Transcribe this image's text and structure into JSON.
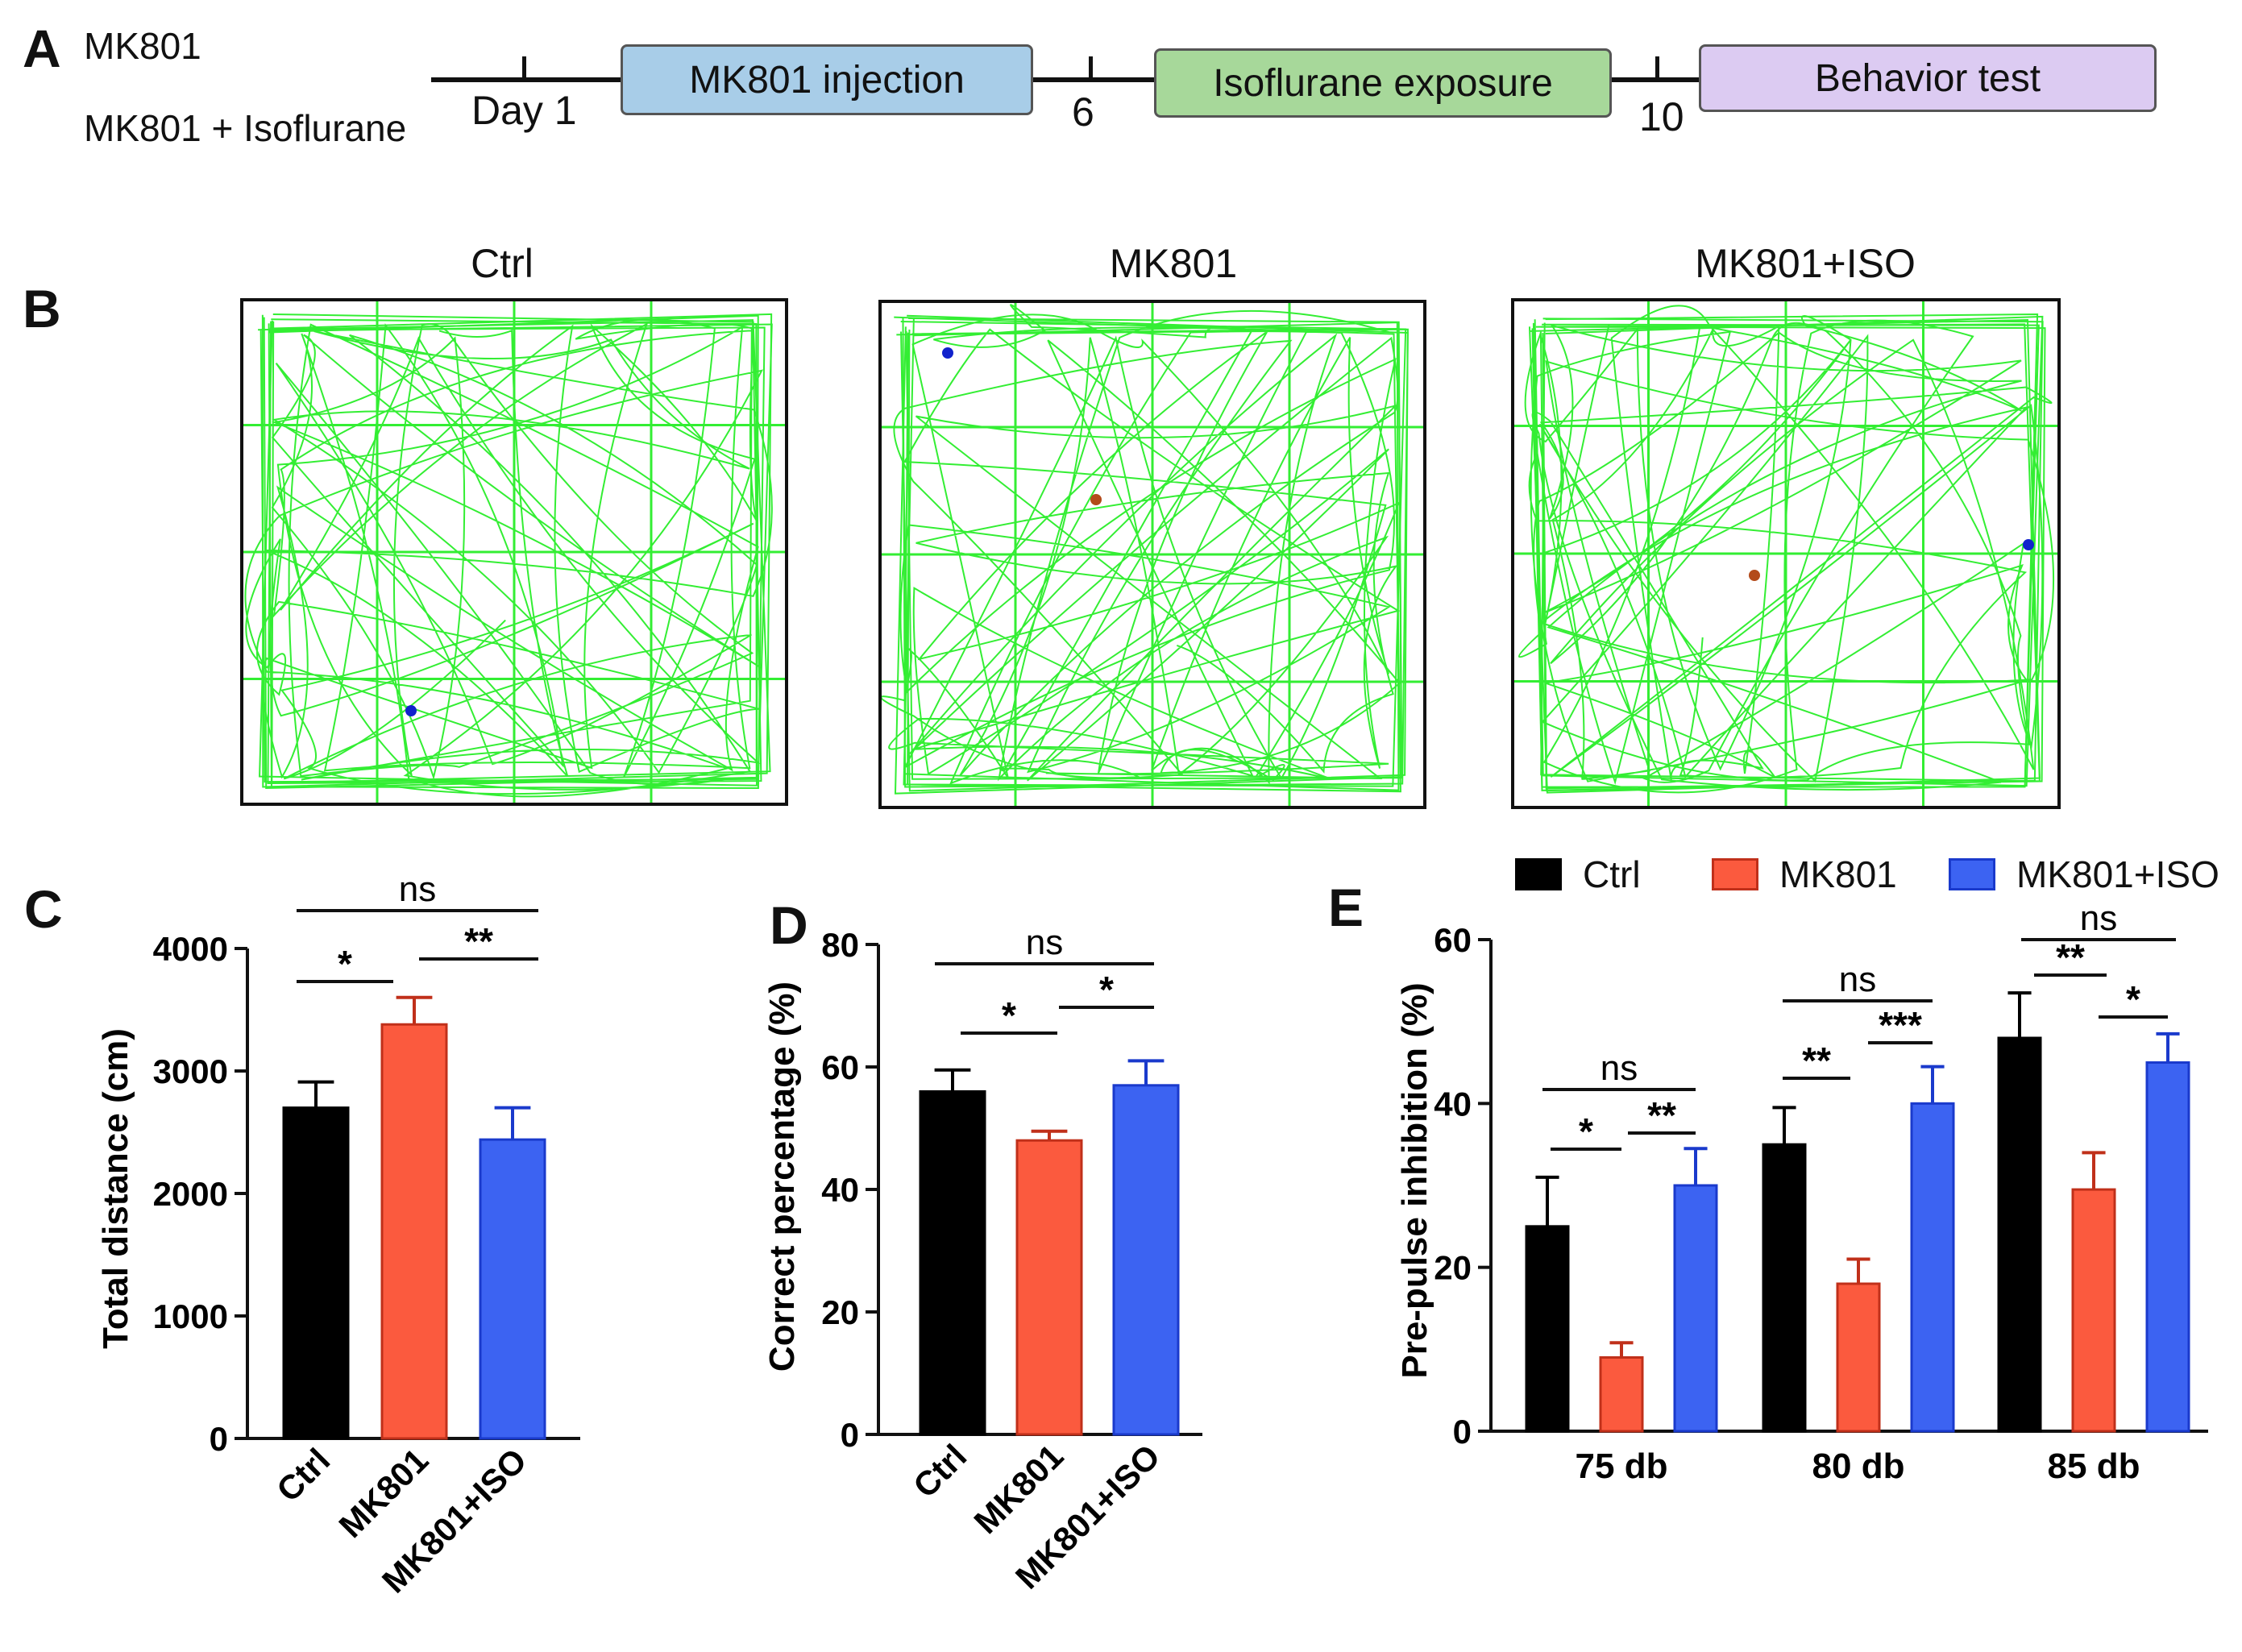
{
  "panelA": {
    "letter": "A",
    "group1": "MK801",
    "group2": "MK801 + Isoflurane",
    "day1": "Day 1",
    "day6": "6",
    "day10": "10",
    "box1": "MK801 injection",
    "box2": "Isoflurane exposure",
    "box3": "Behavior test",
    "colors": {
      "box1": "#a8cde8",
      "box2": "#a7d89a",
      "box3": "#dccbf2"
    }
  },
  "panelB": {
    "letter": "B",
    "arenas": [
      "Ctrl",
      "MK801",
      "MK801+ISO"
    ],
    "trackColor": "#33ee33"
  },
  "panelC": {
    "letter": "C"
  },
  "panelD": {
    "letter": "D"
  },
  "panelE": {
    "letter": "E"
  },
  "colors": {
    "ctrl": "#000000",
    "mk801": "#fb5a3e",
    "iso": "#3c63f2"
  },
  "chart_data": [
    {
      "type": "bar",
      "panel": "C",
      "categories": [
        "Ctrl",
        "MK801",
        "MK801+ISO"
      ],
      "values": [
        2700,
        3380,
        2440
      ],
      "errors": [
        210,
        220,
        260
      ],
      "ylabel": "Total distance (cm)",
      "ylim": [
        0,
        4000
      ],
      "yticks": [
        "0",
        "1000",
        "2000",
        "3000",
        "4000"
      ],
      "significance": [
        "*",
        "**",
        "ns"
      ]
    },
    {
      "type": "bar",
      "panel": "D",
      "categories": [
        "Ctrl",
        "MK801",
        "MK801+ISO"
      ],
      "values": [
        56,
        48,
        57
      ],
      "errors": [
        3.5,
        1.5,
        4
      ],
      "ylabel": "Correct percentage (%)",
      "ylim": [
        0,
        80
      ],
      "yticks": [
        "0",
        "20",
        "40",
        "60",
        "80"
      ],
      "significance": [
        "*",
        "*",
        "ns"
      ]
    },
    {
      "type": "bar",
      "panel": "E",
      "categories": [
        "75 db",
        "80 db",
        "85 db"
      ],
      "series": [
        {
          "name": "Ctrl",
          "values": [
            25,
            35,
            48
          ],
          "errors": [
            6,
            4.5,
            5.5
          ]
        },
        {
          "name": "MK801",
          "values": [
            9,
            18,
            29.5
          ],
          "errors": [
            1.8,
            3,
            4.5
          ]
        },
        {
          "name": "MK801+ISO",
          "values": [
            30,
            40,
            45
          ],
          "errors": [
            4.5,
            4.5,
            3.5
          ]
        }
      ],
      "ylabel": "Pre-pulse inhibition (%)",
      "ylim": [
        0,
        60
      ],
      "yticks": [
        "0",
        "20",
        "40",
        "60"
      ],
      "significance": [
        [
          "*",
          "**",
          "ns"
        ],
        [
          "**",
          "***",
          "ns"
        ],
        [
          "**",
          "*",
          "ns"
        ]
      ]
    }
  ]
}
